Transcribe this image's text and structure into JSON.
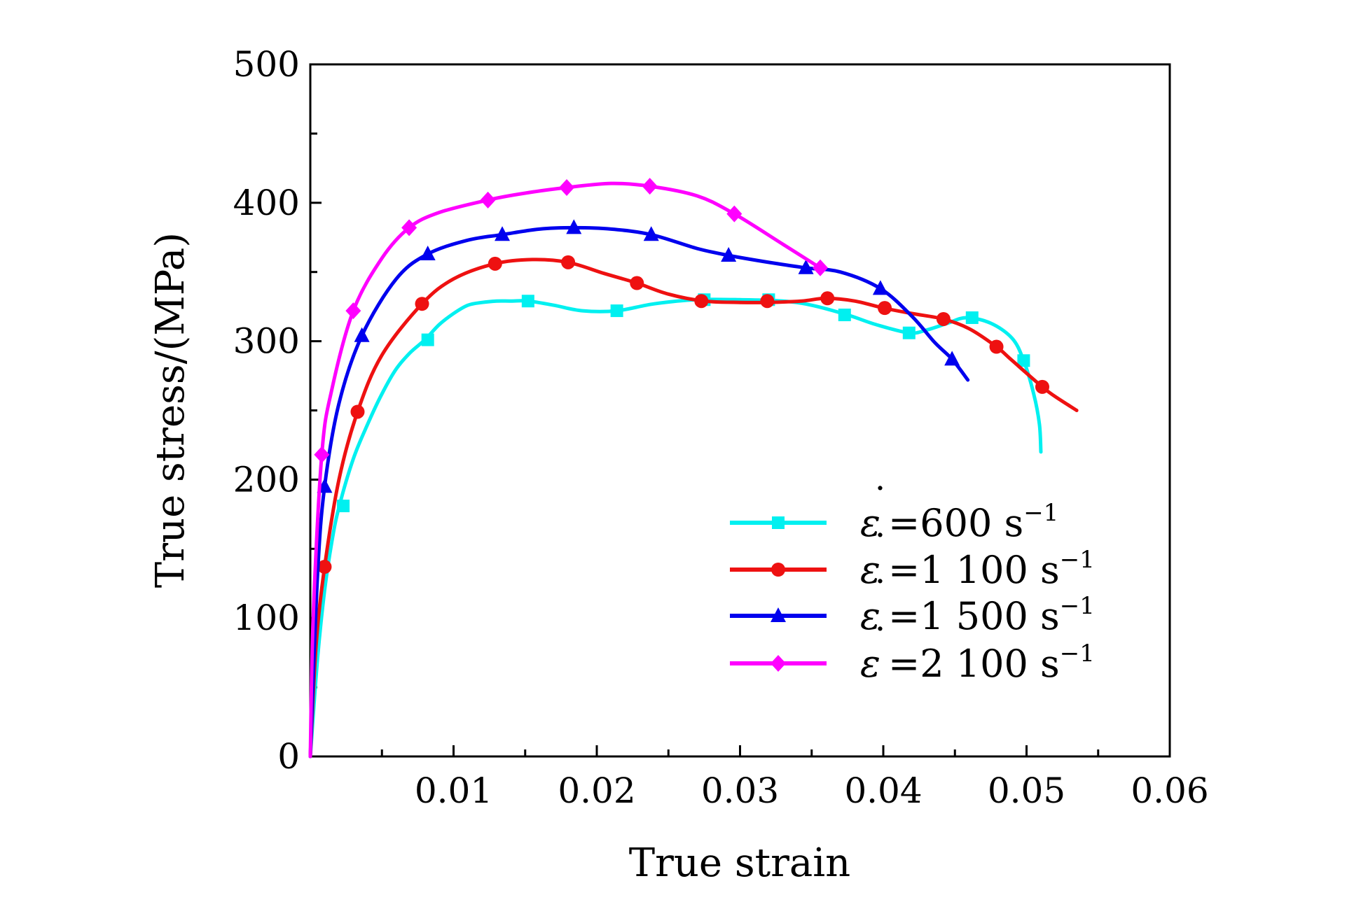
{
  "chart_data": {
    "type": "line",
    "title": "",
    "xlabel": "True strain",
    "ylabel": "True stress/(MPa)",
    "xlim": [
      0,
      0.06
    ],
    "ylim": [
      0,
      500
    ],
    "xticks": [
      0.01,
      0.02,
      0.03,
      0.04,
      0.05,
      0.06
    ],
    "xtick_labels": [
      "0.01",
      "0.02",
      "0.03",
      "0.04",
      "0.05",
      "0.06"
    ],
    "yticks": [
      0,
      100,
      200,
      300,
      400,
      500
    ],
    "ytick_labels": [
      "0",
      "100",
      "200",
      "300",
      "400",
      "500"
    ],
    "legend_position": "lower-right",
    "series": [
      {
        "name": "ε̇=600 s⁻¹",
        "legend_rate": "=600 s",
        "color": "#00f0f0",
        "marker": "square",
        "x": [
          0,
          0.0005,
          0.001,
          0.0015,
          0.002,
          0.003,
          0.004,
          0.005,
          0.006,
          0.007,
          0.008,
          0.009,
          0.01,
          0.011,
          0.012,
          0.013,
          0.014,
          0.0152,
          0.017,
          0.019,
          0.0214,
          0.024,
          0.027,
          0.03,
          0.033,
          0.035,
          0.0375,
          0.0395,
          0.0418,
          0.043,
          0.0445,
          0.0458,
          0.0475,
          0.049,
          0.0498,
          0.0505,
          0.0509,
          0.051
        ],
        "y": [
          0,
          70,
          120,
          155,
          180,
          215,
          240,
          262,
          280,
          292,
          301,
          312,
          320,
          326,
          328,
          329,
          329,
          329,
          326,
          322,
          322,
          327,
          330,
          330,
          329,
          326,
          319,
          312,
          306,
          308,
          313,
          317,
          313,
          302,
          286,
          262,
          240,
          220
        ],
        "marker_x": [
          0.0023,
          0.0082,
          0.0152,
          0.0214,
          0.0275,
          0.032,
          0.0373,
          0.0418,
          0.0462,
          0.0498
        ],
        "marker_y": [
          181,
          301,
          329,
          322,
          330,
          330,
          319,
          306,
          317,
          286
        ]
      },
      {
        "name": "ε̇=1 100 s⁻¹",
        "legend_rate": "=1 100 s",
        "color": "#ee1111",
        "marker": "circle",
        "x": [
          0,
          0.0004,
          0.001,
          0.002,
          0.0033,
          0.005,
          0.0078,
          0.01,
          0.0129,
          0.0155,
          0.018,
          0.0205,
          0.0228,
          0.025,
          0.0275,
          0.03,
          0.0319,
          0.0343,
          0.036,
          0.038,
          0.04,
          0.042,
          0.0442,
          0.046,
          0.0479,
          0.049,
          0.0511,
          0.052,
          0.0535
        ],
        "y": [
          0,
          80,
          137,
          200,
          249,
          290,
          327,
          345,
          356,
          359,
          357,
          349,
          342,
          334,
          329,
          328,
          328,
          329,
          331,
          329,
          324,
          320,
          316,
          309,
          296,
          286,
          267,
          260,
          250
        ],
        "marker_x": [
          0.001,
          0.0033,
          0.0078,
          0.0129,
          0.018,
          0.0228,
          0.0273,
          0.0319,
          0.0361,
          0.0401,
          0.0442,
          0.0479,
          0.0511
        ],
        "marker_y": [
          137,
          249,
          327,
          356,
          357,
          342,
          329,
          329,
          331,
          324,
          316,
          296,
          267
        ]
      },
      {
        "name": "ε̇=1 500 s⁻¹",
        "legend_rate": "=1 500 s",
        "color": "#0000ee",
        "marker": "triangle",
        "x": [
          0,
          0.0005,
          0.001,
          0.002,
          0.0036,
          0.006,
          0.0082,
          0.011,
          0.0134,
          0.016,
          0.0184,
          0.021,
          0.0238,
          0.027,
          0.0292,
          0.032,
          0.0346,
          0.037,
          0.0398,
          0.042,
          0.0436,
          0.0448,
          0.0459
        ],
        "y": [
          0,
          130,
          195,
          255,
          304,
          345,
          363,
          373,
          377,
          381,
          382,
          381,
          377,
          367,
          362,
          357,
          353,
          350,
          338,
          318,
          299,
          287,
          272
        ],
        "marker_x": [
          0.001,
          0.0036,
          0.0082,
          0.0134,
          0.0184,
          0.0238,
          0.0292,
          0.0346,
          0.0398,
          0.0448
        ],
        "marker_y": [
          195,
          304,
          363,
          377,
          382,
          377,
          362,
          353,
          338,
          287
        ]
      },
      {
        "name": "ε̇=2 100 s⁻¹",
        "legend_rate": "=2 100 s",
        "color": "#ff00ff",
        "marker": "diamond",
        "x": [
          0,
          0.0002,
          0.0008,
          0.0015,
          0.003,
          0.005,
          0.0069,
          0.009,
          0.0124,
          0.015,
          0.0179,
          0.021,
          0.0237,
          0.027,
          0.0296,
          0.033,
          0.0356
        ],
        "y": [
          0,
          100,
          218,
          265,
          322,
          360,
          382,
          393,
          402,
          407,
          411,
          414,
          412,
          405,
          392,
          370,
          353
        ],
        "marker_x": [
          0.0008,
          0.003,
          0.0069,
          0.0124,
          0.0179,
          0.0237,
          0.0296,
          0.0356
        ],
        "marker_y": [
          218,
          322,
          382,
          402,
          411,
          412,
          392,
          353
        ]
      }
    ]
  }
}
